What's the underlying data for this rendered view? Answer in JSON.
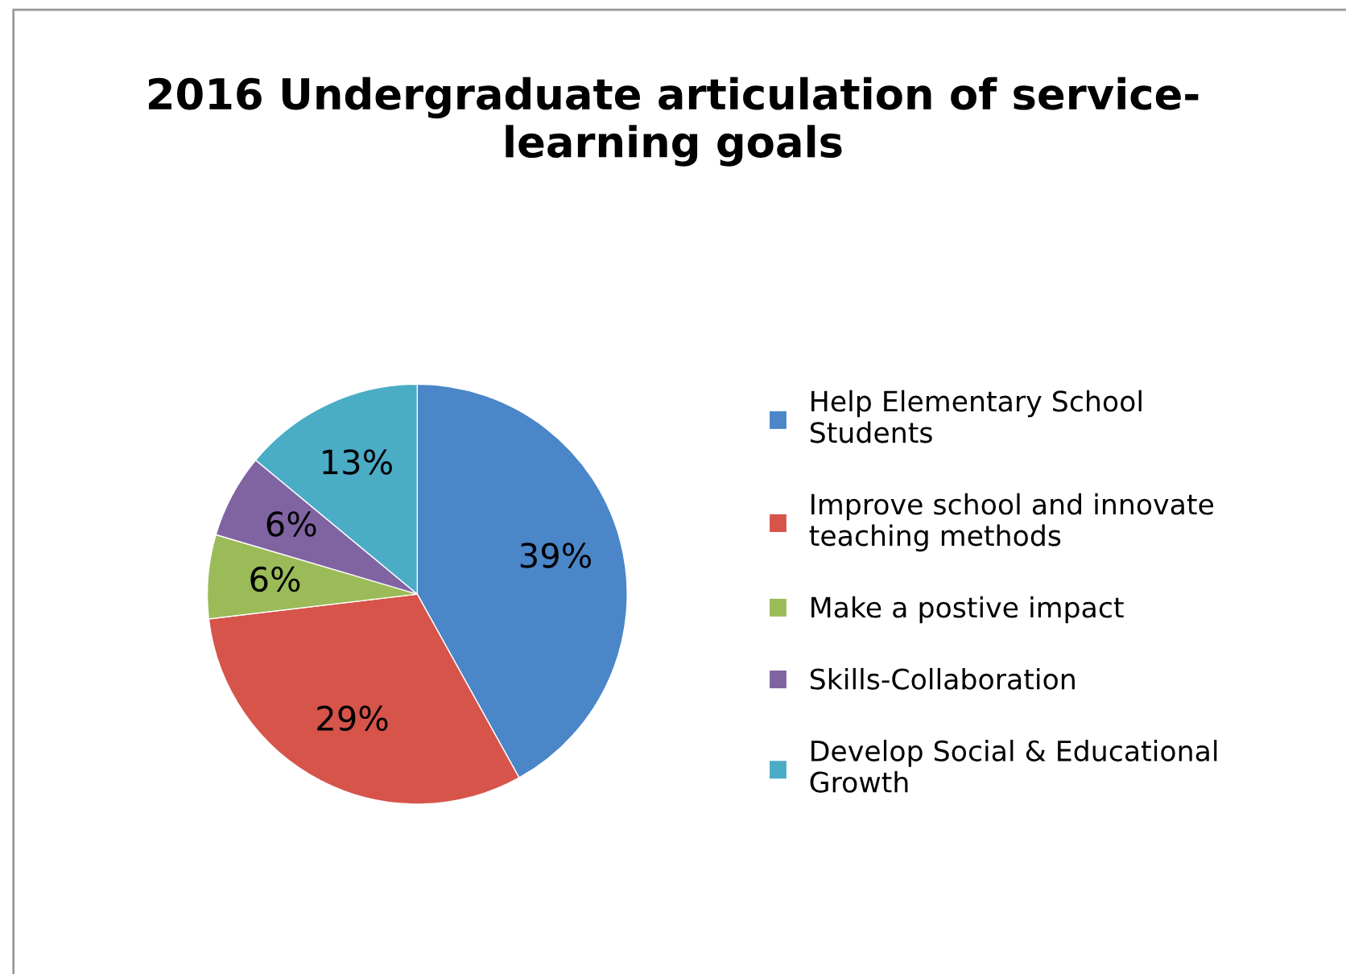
{
  "chart_data": {
    "type": "pie",
    "title": "2016 Undergraduate articulation of service-\nlearning goals",
    "categories": [
      "Help Elementary School Students",
      "Improve school and innovate teaching methods",
      "Make a postive impact",
      "Skills-Collaboration",
      "Develop Social & Educational Growth"
    ],
    "values": [
      39,
      29,
      6,
      6,
      13
    ],
    "colors": [
      "#4a86c8",
      "#d6544a",
      "#9bbb59",
      "#8064a2",
      "#4bacc6"
    ],
    "value_labels": [
      "39%",
      "29%",
      "6%",
      "6%",
      "13%"
    ],
    "legend": "right"
  }
}
